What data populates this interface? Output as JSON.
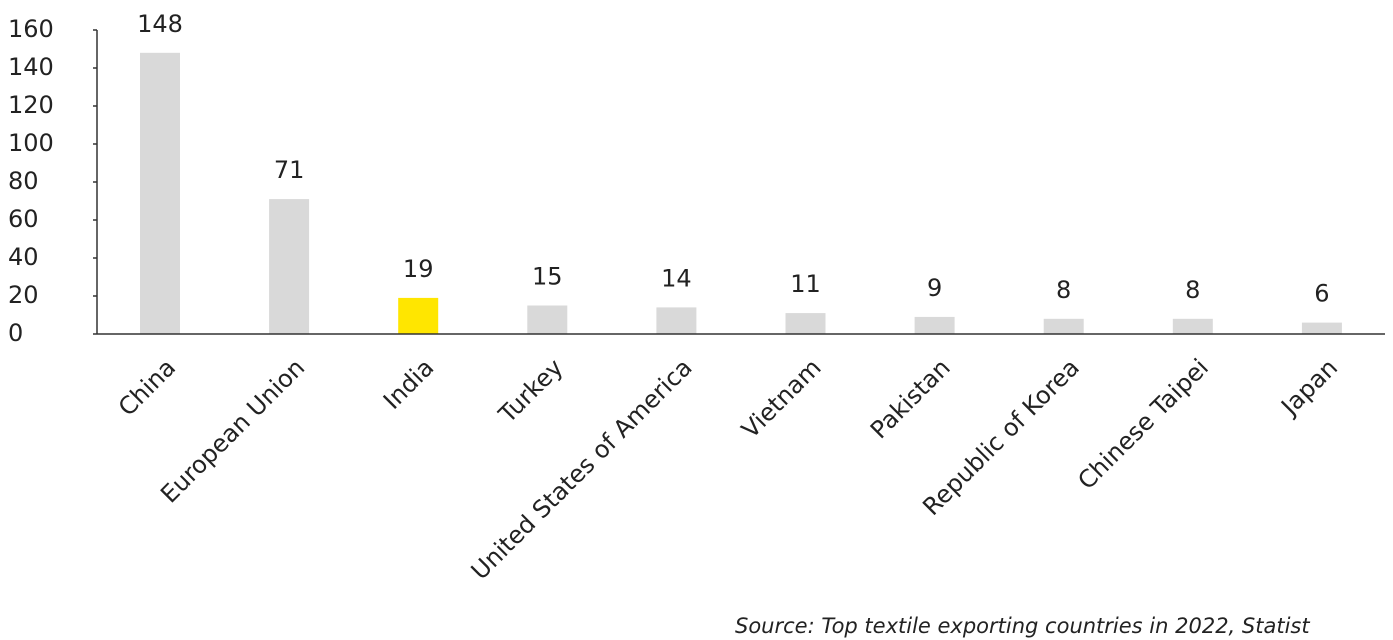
{
  "chart_data": {
    "type": "bar",
    "categories": [
      "China",
      "European Union",
      "India",
      "Turkey",
      "United States of America",
      "Vietnam",
      "Pakistan",
      "Republic of Korea",
      "Chinese Taipei",
      "Japan"
    ],
    "values": [
      148,
      71,
      19,
      15,
      14,
      11,
      9,
      8,
      8,
      6
    ],
    "colors": [
      "#d9d9d9",
      "#d9d9d9",
      "#ffe600",
      "#d9d9d9",
      "#d9d9d9",
      "#d9d9d9",
      "#d9d9d9",
      "#d9d9d9",
      "#d9d9d9",
      "#d9d9d9"
    ],
    "ylim": [
      0,
      160
    ],
    "yticks": [
      0,
      20,
      40,
      60,
      80,
      100,
      120,
      140,
      160
    ],
    "grid": false,
    "source": "Source: Top textile exporting countries in 2022, Statist"
  }
}
